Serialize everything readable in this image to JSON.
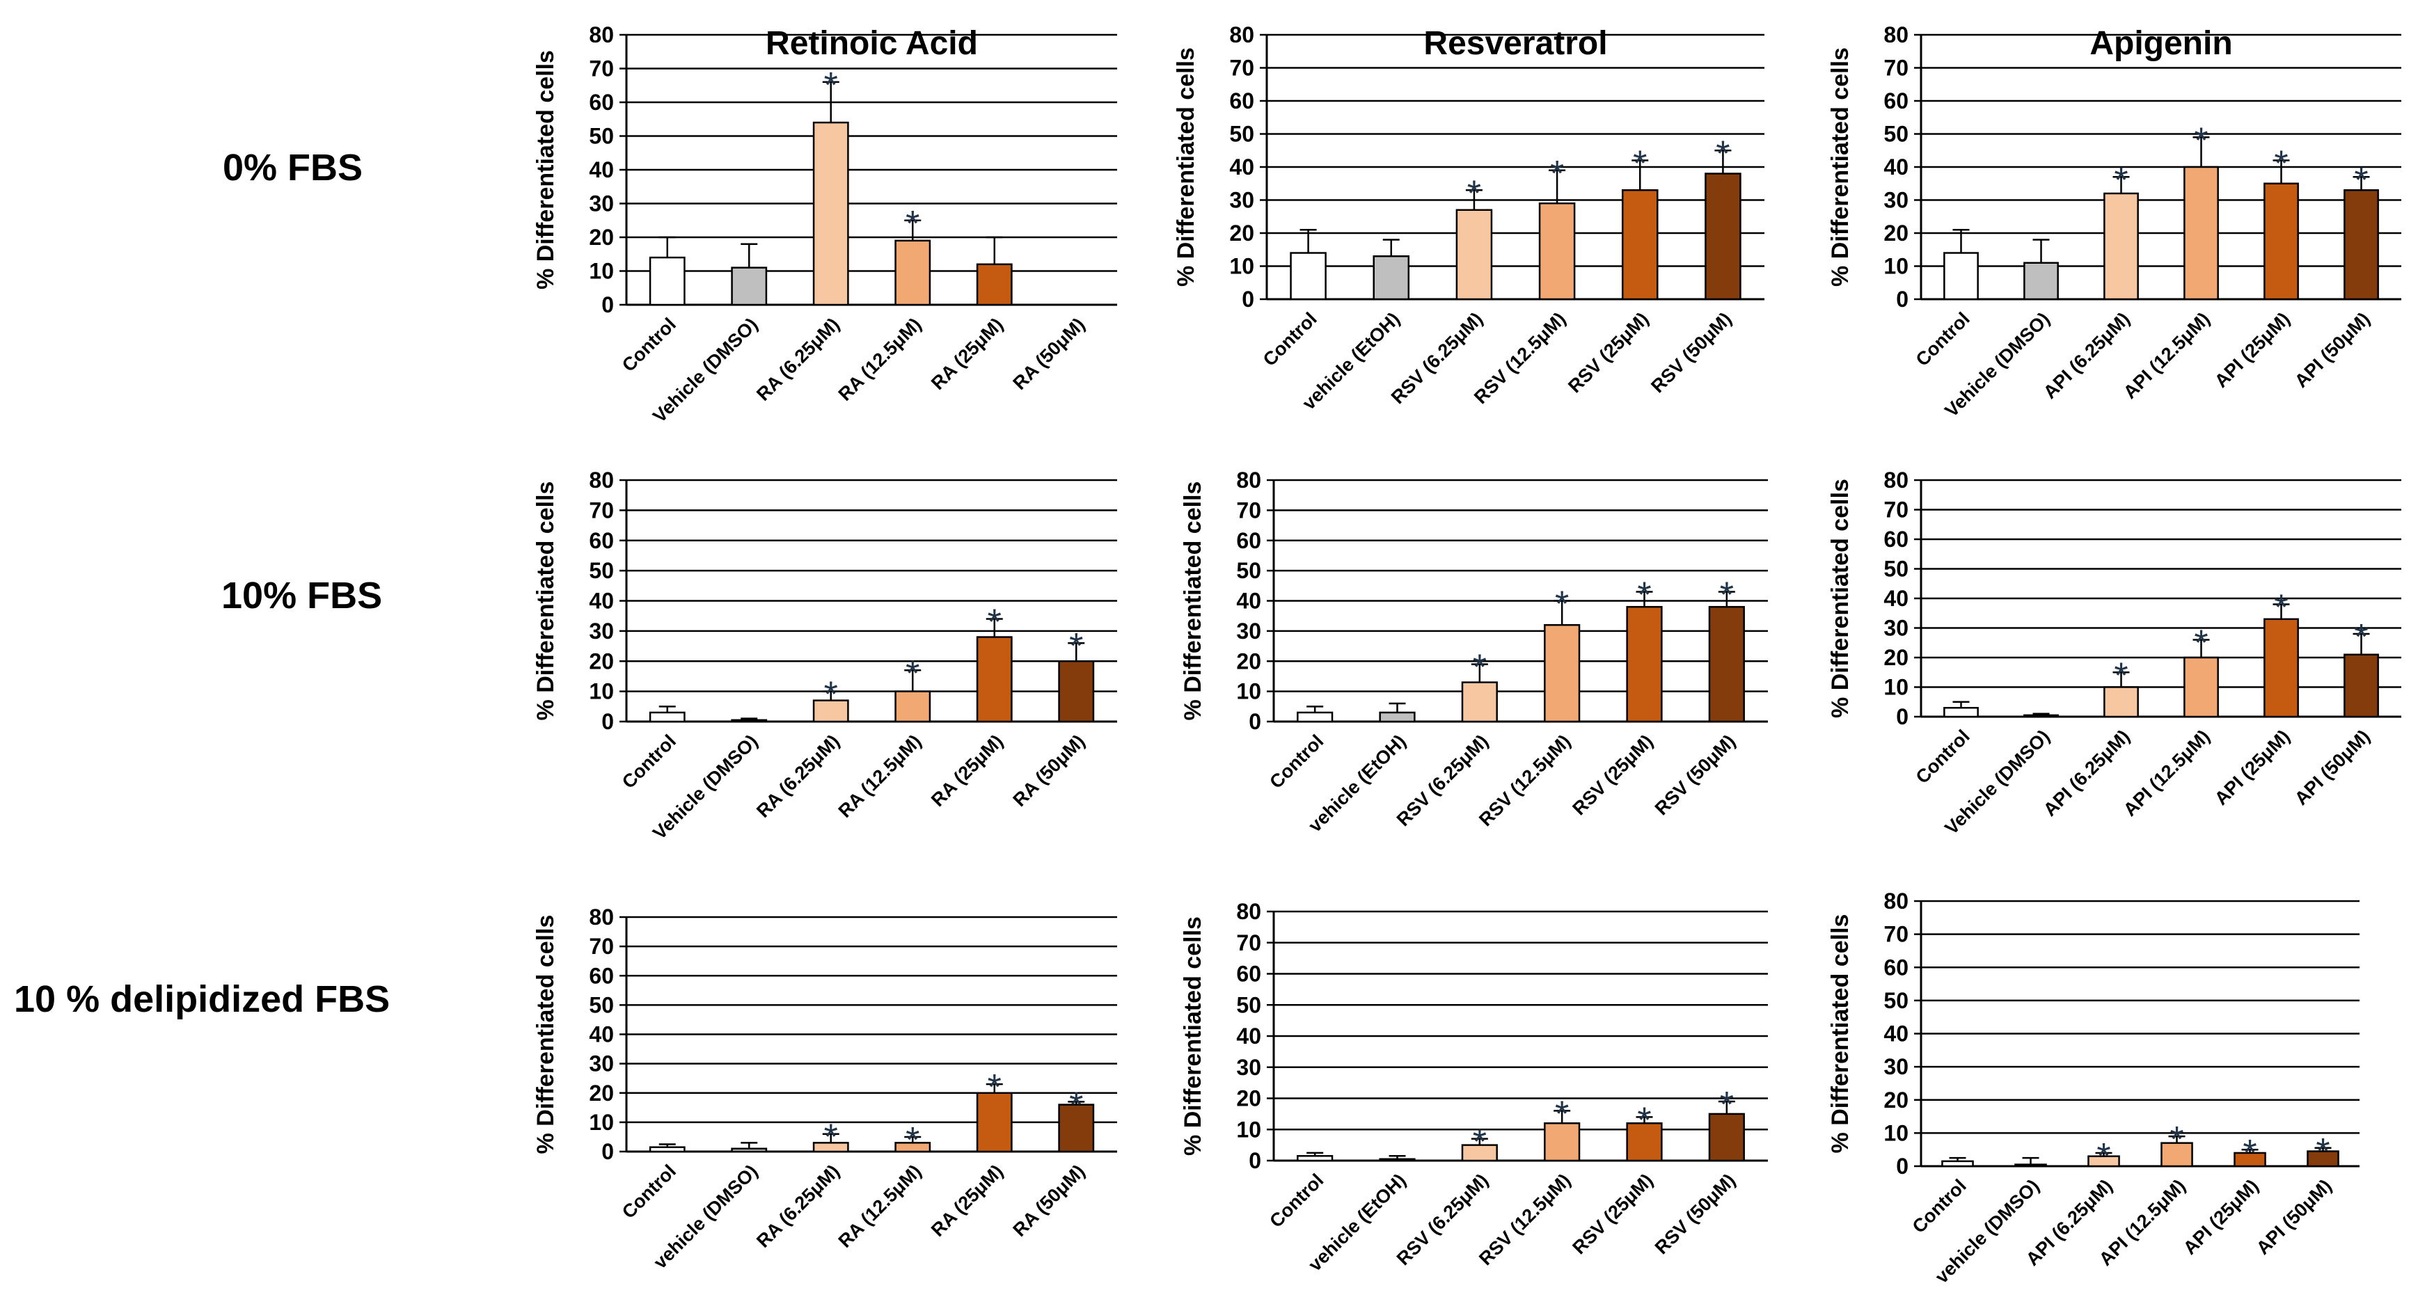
{
  "row_labels": [
    "0% FBS",
    "10% FBS",
    "10 % delipidized FBS"
  ],
  "column_titles": [
    "Retinoic Acid",
    "Resveratrol",
    "Apigenin"
  ],
  "colors": {
    "control": "#ffffff",
    "vehicle": "#bfbfbf",
    "c1": "#f7c7a2",
    "c2": "#f2a873",
    "c3": "#c55a11",
    "c4": "#843c0c",
    "grid": "#000000"
  },
  "chart_data": [
    {
      "type": "bar",
      "panel": "0% FBS / Retinoic Acid",
      "title": "Retinoic Acid",
      "ylabel": "% Differentiated cells",
      "ylim": [
        0,
        80
      ],
      "yticks": [
        "0",
        "10",
        "20",
        "30",
        "40",
        "50",
        "60",
        "70",
        "80"
      ],
      "categories": [
        "Control",
        "Vehicle (DMSO)",
        "RA (6.25μM)",
        "RA (12.5μM)",
        "RA (25μM)",
        "RA (50μM)"
      ],
      "values": [
        14,
        11,
        54,
        19,
        12,
        0
      ],
      "errors": [
        6,
        7,
        12,
        6,
        8,
        0
      ],
      "significant": [
        false,
        false,
        true,
        true,
        false,
        false
      ],
      "annotation": "*"
    },
    {
      "type": "bar",
      "panel": "0% FBS / Resveratrol",
      "title": "Resveratrol",
      "ylabel": "% Differentiated cells",
      "ylim": [
        0,
        80
      ],
      "yticks": [
        "0",
        "10",
        "20",
        "30",
        "40",
        "50",
        "60",
        "70",
        "80"
      ],
      "categories": [
        "Control",
        "vehicle (EtOH)",
        "RSV (6.25μM)",
        "RSV (12.5μM)",
        "RSV  (25μM)",
        "RSV (50μM)"
      ],
      "values": [
        14,
        13,
        27,
        29,
        33,
        38
      ],
      "errors": [
        7,
        5,
        6,
        10,
        9,
        7
      ],
      "significant": [
        false,
        false,
        true,
        true,
        true,
        true
      ],
      "annotation": "*"
    },
    {
      "type": "bar",
      "panel": "0% FBS / Apigenin",
      "title": "Apigenin",
      "ylabel": "% Differentiated cells",
      "ylim": [
        0,
        80
      ],
      "yticks": [
        "0",
        "10",
        "20",
        "30",
        "40",
        "50",
        "60",
        "70",
        "80"
      ],
      "categories": [
        "Control",
        "Vehicle (DMSO)",
        "API (6.25μM)",
        "API (12.5μM)",
        "API (25μM)",
        "API (50μM)"
      ],
      "values": [
        14,
        11,
        32,
        40,
        35,
        33
      ],
      "errors": [
        7,
        7,
        5,
        9,
        7,
        4
      ],
      "significant": [
        false,
        false,
        true,
        true,
        true,
        true
      ],
      "annotation": "*"
    },
    {
      "type": "bar",
      "panel": "10% FBS / Retinoic Acid",
      "title": "",
      "ylabel": "% Differentiated cells",
      "ylim": [
        0,
        80
      ],
      "yticks": [
        "0",
        "10",
        "20",
        "30",
        "40",
        "50",
        "60",
        "70",
        "80"
      ],
      "categories": [
        "Control",
        "Vehicle (DMSO)",
        "RA (6.25μM)",
        "RA (12.5μM)",
        "RA (25μM)",
        "RA (50μM)"
      ],
      "values": [
        3,
        0.5,
        7,
        10,
        28,
        20
      ],
      "errors": [
        2,
        0.5,
        3,
        7,
        6,
        6
      ],
      "significant": [
        false,
        false,
        true,
        true,
        true,
        true
      ],
      "annotation": "*"
    },
    {
      "type": "bar",
      "panel": "10% FBS / Resveratrol",
      "title": "",
      "ylabel": "% Differentiated cells",
      "ylim": [
        0,
        80
      ],
      "yticks": [
        "0",
        "10",
        "20",
        "30",
        "40",
        "50",
        "60",
        "70",
        "80"
      ],
      "categories": [
        "Control",
        "vehicle (EtOH)",
        "RSV (6.25μM)",
        "RSV (12.5μM)",
        "RSV  (25μM)",
        "RSV (50μM)"
      ],
      "values": [
        3,
        3,
        13,
        32,
        38,
        38
      ],
      "errors": [
        2,
        3,
        6,
        8,
        5,
        5
      ],
      "significant": [
        false,
        false,
        true,
        true,
        true,
        true
      ],
      "annotation": "*"
    },
    {
      "type": "bar",
      "panel": "10% FBS / Apigenin",
      "title": "",
      "ylabel": "% Differentiated cells",
      "ylim": [
        0,
        80
      ],
      "yticks": [
        "0",
        "10",
        "20",
        "30",
        "40",
        "50",
        "60",
        "70",
        "80"
      ],
      "categories": [
        "Control",
        "Vehicle (DMSO)",
        "API (6.25μM)",
        "API (12.5μM)",
        "API (25μM)",
        "API (50μM)"
      ],
      "values": [
        3,
        0.5,
        10,
        20,
        33,
        21
      ],
      "errors": [
        2,
        0.5,
        5,
        6,
        5,
        7
      ],
      "significant": [
        false,
        false,
        true,
        true,
        true,
        true
      ],
      "annotation": "*"
    },
    {
      "type": "bar",
      "panel": "10 % delipidized FBS / Retinoic Acid",
      "title": "",
      "ylabel": "% Differentiated cells",
      "ylim": [
        0,
        80
      ],
      "yticks": [
        "0",
        "10",
        "20",
        "30",
        "40",
        "50",
        "60",
        "70",
        "80"
      ],
      "categories": [
        "Control",
        "vehicle (DMSO)",
        "RA (6.25μM)",
        "RA (12.5μM)",
        "RA (25μM)",
        "RA (50μM)"
      ],
      "values": [
        1.5,
        1,
        3,
        3,
        20,
        16
      ],
      "errors": [
        1,
        2,
        3,
        2,
        3,
        1
      ],
      "significant": [
        false,
        false,
        true,
        true,
        true,
        true
      ],
      "annotation": "*"
    },
    {
      "type": "bar",
      "panel": "10 % delipidized FBS / Resveratrol",
      "title": "",
      "ylabel": "% Differentiated cells",
      "ylim": [
        0,
        80
      ],
      "yticks": [
        "0",
        "10",
        "20",
        "30",
        "40",
        "50",
        "60",
        "70",
        "80"
      ],
      "categories": [
        "Control",
        "vehicle (EtOH)",
        "RSV (6.25μM)",
        "RSV (12.5μM)",
        "RSV (25μM)",
        "RSV (50μM)"
      ],
      "values": [
        1.5,
        0.5,
        5,
        12,
        12,
        15
      ],
      "errors": [
        1,
        1,
        2,
        4,
        2,
        4
      ],
      "significant": [
        false,
        false,
        true,
        true,
        true,
        true
      ],
      "annotation": "*"
    },
    {
      "type": "bar",
      "panel": "10 % delipidized FBS / Apigenin",
      "title": "",
      "ylabel": "% Differentiated cells",
      "ylim": [
        0,
        80
      ],
      "yticks": [
        "0",
        "10",
        "20",
        "30",
        "40",
        "50",
        "60",
        "70",
        "80"
      ],
      "categories": [
        "Control",
        "vehicle (DMSO)",
        "API (6.25μM)",
        "API  (12.5μM)",
        "API (25μM)",
        "API (50μM)"
      ],
      "values": [
        1.5,
        0.5,
        3,
        7,
        4,
        4.5
      ],
      "errors": [
        1,
        2,
        1,
        2,
        1,
        1
      ],
      "significant": [
        false,
        false,
        true,
        true,
        true,
        true
      ],
      "annotation": "*"
    }
  ]
}
